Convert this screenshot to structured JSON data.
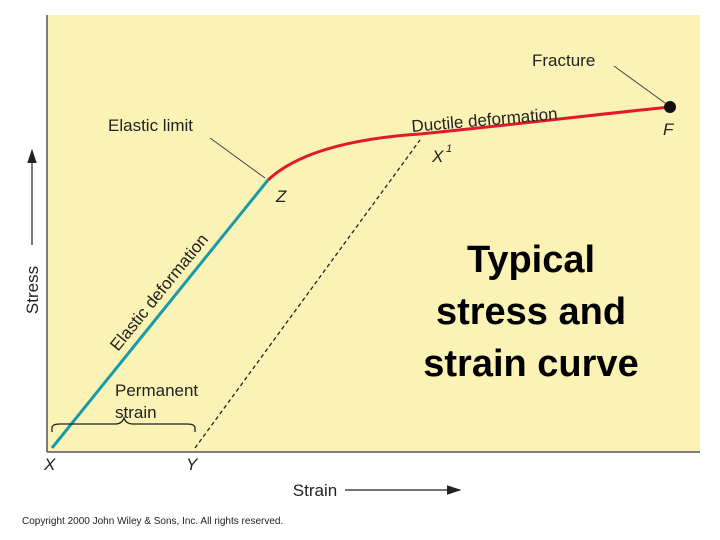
{
  "diagram": {
    "axes": {
      "y_label": "Stress",
      "x_label": "Strain"
    },
    "points": {
      "origin": "X",
      "permanent": "Y",
      "elastic_limit_point": "Z",
      "yield_return": {
        "base": "X",
        "sup": "1"
      },
      "fracture_point": "F"
    },
    "annotations": {
      "fracture": "Fracture",
      "elastic_limit": "Elastic limit",
      "ductile": "Ductile deformation",
      "elastic": "Elastic deformation",
      "permanent_strain": [
        "Permanent",
        "strain"
      ]
    },
    "title_lines": [
      "Typical",
      "stress and",
      "strain curve"
    ],
    "copyright": "Copyright 2000 John Wiley & Sons, Inc. All rights reserved."
  }
}
